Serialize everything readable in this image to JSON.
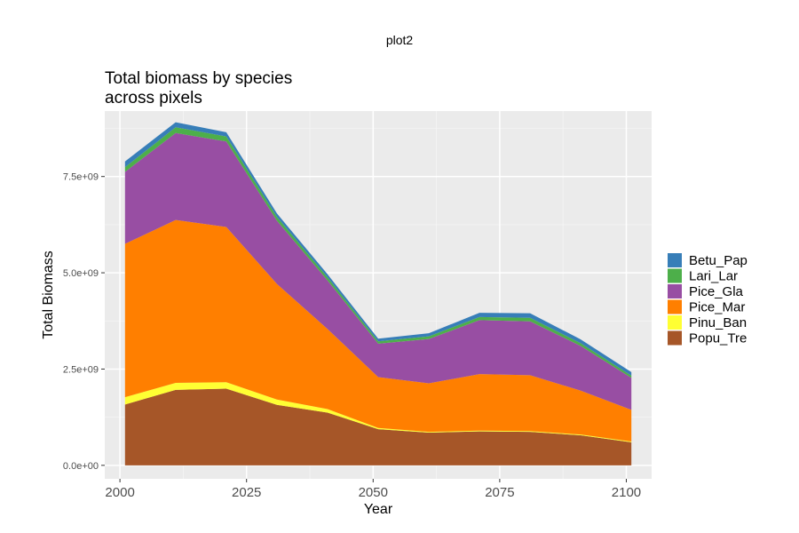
{
  "page_title": "plot2",
  "chart_data": {
    "type": "area",
    "stacked": true,
    "title_line1": "Total biomass by species",
    "title_line2": "across pixels",
    "xlabel": "Year",
    "ylabel": "Total Biomass",
    "xlim": [
      1997,
      2105
    ],
    "ylim": [
      -350000000,
      9200000000
    ],
    "x_ticks": [
      2000,
      2025,
      2050,
      2075,
      2100
    ],
    "x_tick_labels": [
      "2000",
      "2025",
      "2050",
      "2075",
      "2100"
    ],
    "y_ticks": [
      0,
      2500000000,
      5000000000,
      7500000000
    ],
    "y_tick_labels": [
      "0.0e+00",
      "2.5e+09",
      "5.0e+09",
      "7.5e+09"
    ],
    "grid": true,
    "legend_position": "right",
    "x": [
      2001,
      2011,
      2021,
      2031,
      2041,
      2051,
      2061,
      2071,
      2081,
      2091,
      2101
    ],
    "series": [
      {
        "name": "Popu_Tre",
        "color": "#A65628",
        "values": [
          1580000000,
          1960000000,
          1990000000,
          1570000000,
          1370000000,
          940000000,
          850000000,
          880000000,
          870000000,
          780000000,
          600000000
        ]
      },
      {
        "name": "Pinu_Ban",
        "color": "#FFFF33",
        "values": [
          190000000,
          180000000,
          170000000,
          140000000,
          90000000,
          30000000,
          20000000,
          20000000,
          20000000,
          20000000,
          20000000
        ]
      },
      {
        "name": "Pice_Mar",
        "color": "#FF7F00",
        "values": [
          3980000000,
          4230000000,
          4030000000,
          3000000000,
          2080000000,
          1320000000,
          1260000000,
          1470000000,
          1450000000,
          1140000000,
          820000000
        ]
      },
      {
        "name": "Pice_Gla",
        "color": "#984EA3",
        "values": [
          1870000000,
          2260000000,
          2220000000,
          1640000000,
          1260000000,
          870000000,
          1150000000,
          1400000000,
          1400000000,
          1160000000,
          830000000
        ]
      },
      {
        "name": "Lari_Lar",
        "color": "#4DAF4A",
        "values": [
          120000000,
          150000000,
          130000000,
          100000000,
          80000000,
          60000000,
          70000000,
          80000000,
          90000000,
          70000000,
          60000000
        ]
      },
      {
        "name": "Betu_Pap",
        "color": "#377EB8",
        "values": [
          150000000,
          130000000,
          110000000,
          90000000,
          80000000,
          70000000,
          80000000,
          110000000,
          120000000,
          100000000,
          90000000
        ]
      }
    ],
    "legend_order": [
      "Betu_Pap",
      "Lari_Lar",
      "Pice_Gla",
      "Pice_Mar",
      "Pinu_Ban",
      "Popu_Tre"
    ]
  }
}
